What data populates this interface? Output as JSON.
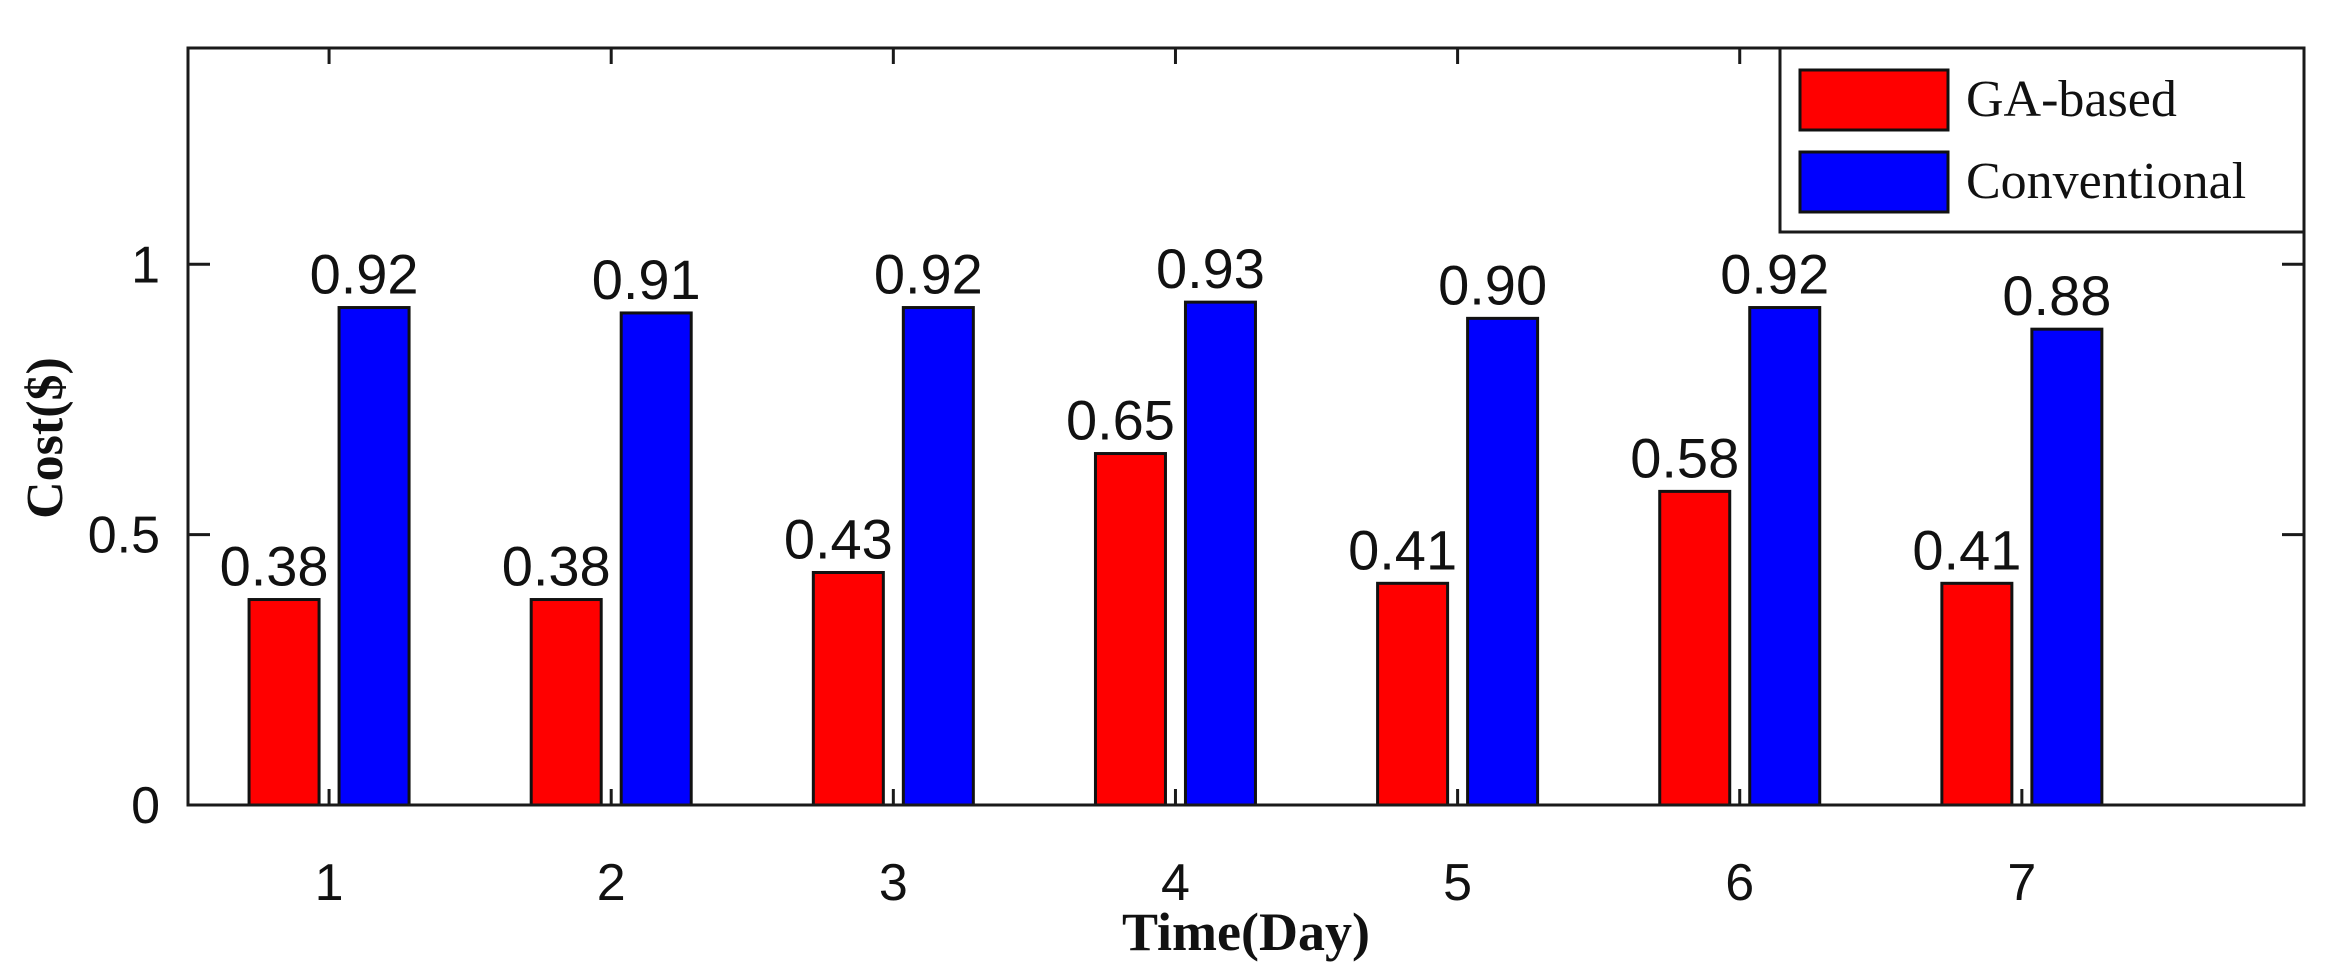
{
  "chart_data": {
    "type": "bar",
    "title": "",
    "xlabel": "Time(Day)",
    "ylabel": "Cost($)",
    "categories": [
      "1",
      "2",
      "3",
      "4",
      "5",
      "6",
      "7"
    ],
    "ylim": [
      0,
      1.4
    ],
    "yticks": [
      0,
      0.5,
      1
    ],
    "ytick_labels": [
      "0",
      "0.5",
      "1"
    ],
    "grid": false,
    "legend_position": "top-right",
    "series": [
      {
        "name": "GA-based",
        "color": "#ff0000",
        "values": [
          0.38,
          0.38,
          0.43,
          0.65,
          0.41,
          0.58,
          0.41
        ],
        "labels": [
          "0.38",
          "0.38",
          "0.43",
          "0.65",
          "0.41",
          "0.58",
          "0.41"
        ]
      },
      {
        "name": "Conventional",
        "color": "#0000ff",
        "values": [
          0.92,
          0.91,
          0.92,
          0.93,
          0.9,
          0.92,
          0.88
        ],
        "labels": [
          "0.92",
          "0.91",
          "0.92",
          "0.93",
          "0.90",
          "0.92",
          "0.88"
        ]
      }
    ]
  }
}
